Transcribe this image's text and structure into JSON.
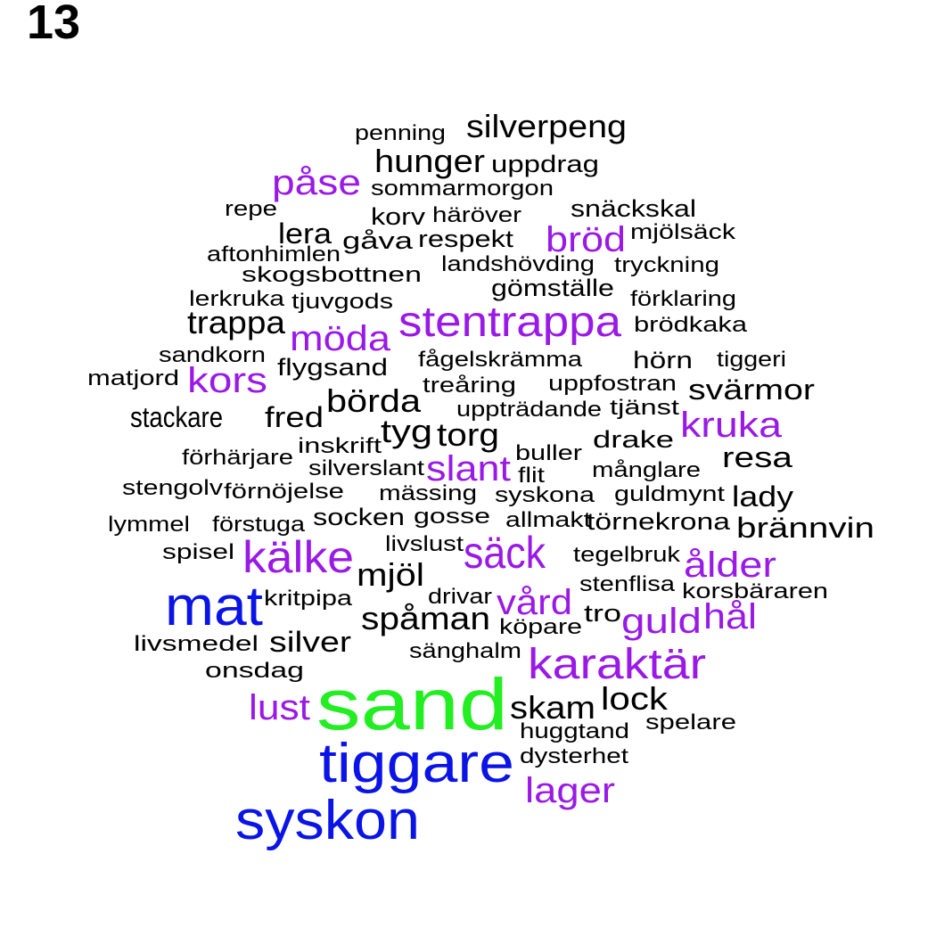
{
  "page_number": "13",
  "colors": {
    "black": "#000000",
    "purple": "#9a19e6",
    "blue": "#0a14e6",
    "green": "#22ee22"
  },
  "words": [
    {
      "text": "penning",
      "tier": "s"
    },
    {
      "text": "silverpeng",
      "tier": "m"
    },
    {
      "text": "hunger",
      "tier": "m"
    },
    {
      "text": "uppdrag",
      "tier": "s+"
    },
    {
      "text": "påse",
      "tier": "p"
    },
    {
      "text": "sommarmorgon",
      "tier": "s"
    },
    {
      "text": "repe",
      "tier": "s"
    },
    {
      "text": "korv",
      "tier": "s+"
    },
    {
      "text": "häröver",
      "tier": "s"
    },
    {
      "text": "snäckskal",
      "tier": "s+"
    },
    {
      "text": "lera",
      "tier": "m-"
    },
    {
      "text": "gåva",
      "tier": "s+"
    },
    {
      "text": "respekt",
      "tier": "s+"
    },
    {
      "text": "bröd",
      "tier": "p"
    },
    {
      "text": "mjölsäck",
      "tier": "s"
    },
    {
      "text": "aftonhimlen",
      "tier": "s"
    },
    {
      "text": "landshövding",
      "tier": "s"
    },
    {
      "text": "tryckning",
      "tier": "s"
    },
    {
      "text": "skogsbottnen",
      "tier": "s"
    },
    {
      "text": "gömställe",
      "tier": "s+"
    },
    {
      "text": "lerkruka",
      "tier": "s"
    },
    {
      "text": "tjuvgods",
      "tier": "s"
    },
    {
      "text": "förklaring",
      "tier": "s"
    },
    {
      "text": "stentrappa",
      "tier": "P"
    },
    {
      "text": "trappa",
      "tier": "m"
    },
    {
      "text": "brödkaka",
      "tier": "s"
    },
    {
      "text": "möda",
      "tier": "p"
    },
    {
      "text": "sandkorn",
      "tier": "s"
    },
    {
      "text": "fågelskrämma",
      "tier": "s"
    },
    {
      "text": "hörn",
      "tier": "s+"
    },
    {
      "text": "tiggeri",
      "tier": "s"
    },
    {
      "text": "matjord",
      "tier": "s"
    },
    {
      "text": "kors",
      "tier": "p"
    },
    {
      "text": "flygsand",
      "tier": "s+"
    },
    {
      "text": "treåring",
      "tier": "s"
    },
    {
      "text": "uppfostran",
      "tier": "s"
    },
    {
      "text": "svärmor",
      "tier": "m-"
    },
    {
      "text": "börda",
      "tier": "m"
    },
    {
      "text": "uppträdande",
      "tier": "s"
    },
    {
      "text": "tjänst",
      "tier": "s"
    },
    {
      "text": "stackare",
      "tier": "m-"
    },
    {
      "text": "fred",
      "tier": "m-"
    },
    {
      "text": "kruka",
      "tier": "p"
    },
    {
      "text": "tyg",
      "tier": "m"
    },
    {
      "text": "torg",
      "tier": "m"
    },
    {
      "text": "inskrift",
      "tier": "s"
    },
    {
      "text": "drake",
      "tier": "s+"
    },
    {
      "text": "förhärjare",
      "tier": "s"
    },
    {
      "text": "buller",
      "tier": "s"
    },
    {
      "text": "resa",
      "tier": "m-"
    },
    {
      "text": "silverslant",
      "tier": "s"
    },
    {
      "text": "slant",
      "tier": "p"
    },
    {
      "text": "flit",
      "tier": "s"
    },
    {
      "text": "månglare",
      "tier": "s"
    },
    {
      "text": "stengolv",
      "tier": "s"
    },
    {
      "text": "förnöjelse",
      "tier": "s"
    },
    {
      "text": "mässing",
      "tier": "s"
    },
    {
      "text": "syskona",
      "tier": "s"
    },
    {
      "text": "guldmynt",
      "tier": "s"
    },
    {
      "text": "lady",
      "tier": "m-"
    },
    {
      "text": "lymmel",
      "tier": "s"
    },
    {
      "text": "förstuga",
      "tier": "s"
    },
    {
      "text": "socken",
      "tier": "s+"
    },
    {
      "text": "gosse",
      "tier": "s"
    },
    {
      "text": "allmakt",
      "tier": "s"
    },
    {
      "text": "törnekrona",
      "tier": "s+"
    },
    {
      "text": "brännvin",
      "tier": "m-"
    },
    {
      "text": "livslust",
      "tier": "s"
    },
    {
      "text": "spisel",
      "tier": "s"
    },
    {
      "text": "kälke",
      "tier": "P-"
    },
    {
      "text": "säck",
      "tier": "P-"
    },
    {
      "text": "tegelbruk",
      "tier": "s"
    },
    {
      "text": "ålder",
      "tier": "p"
    },
    {
      "text": "mjöl",
      "tier": "m"
    },
    {
      "text": "stenflisa",
      "tier": "s"
    },
    {
      "text": "mat",
      "tier": "B"
    },
    {
      "text": "korsbäraren",
      "tier": "s"
    },
    {
      "text": "kritpipa",
      "tier": "s"
    },
    {
      "text": "drivar",
      "tier": "s"
    },
    {
      "text": "vård",
      "tier": "p"
    },
    {
      "text": "tro",
      "tier": "s+"
    },
    {
      "text": "guld",
      "tier": "p"
    },
    {
      "text": "hål",
      "tier": "p"
    },
    {
      "text": "spåman",
      "tier": "m"
    },
    {
      "text": "köpare",
      "tier": "s"
    },
    {
      "text": "livsmedel",
      "tier": "s"
    },
    {
      "text": "silver",
      "tier": "m-"
    },
    {
      "text": "sänghalm",
      "tier": "s"
    },
    {
      "text": "karaktär",
      "tier": "P"
    },
    {
      "text": "onsdag",
      "tier": "s"
    },
    {
      "text": "sand",
      "tier": "G"
    },
    {
      "text": "lust",
      "tier": "p"
    },
    {
      "text": "skam",
      "tier": "m"
    },
    {
      "text": "lock",
      "tier": "m"
    },
    {
      "text": "spelare",
      "tier": "s"
    },
    {
      "text": "huggtand",
      "tier": "s"
    },
    {
      "text": "tiggare",
      "tier": "B"
    },
    {
      "text": "dysterhet",
      "tier": "s"
    },
    {
      "text": "lager",
      "tier": "p"
    },
    {
      "text": "syskon",
      "tier": "B"
    }
  ]
}
